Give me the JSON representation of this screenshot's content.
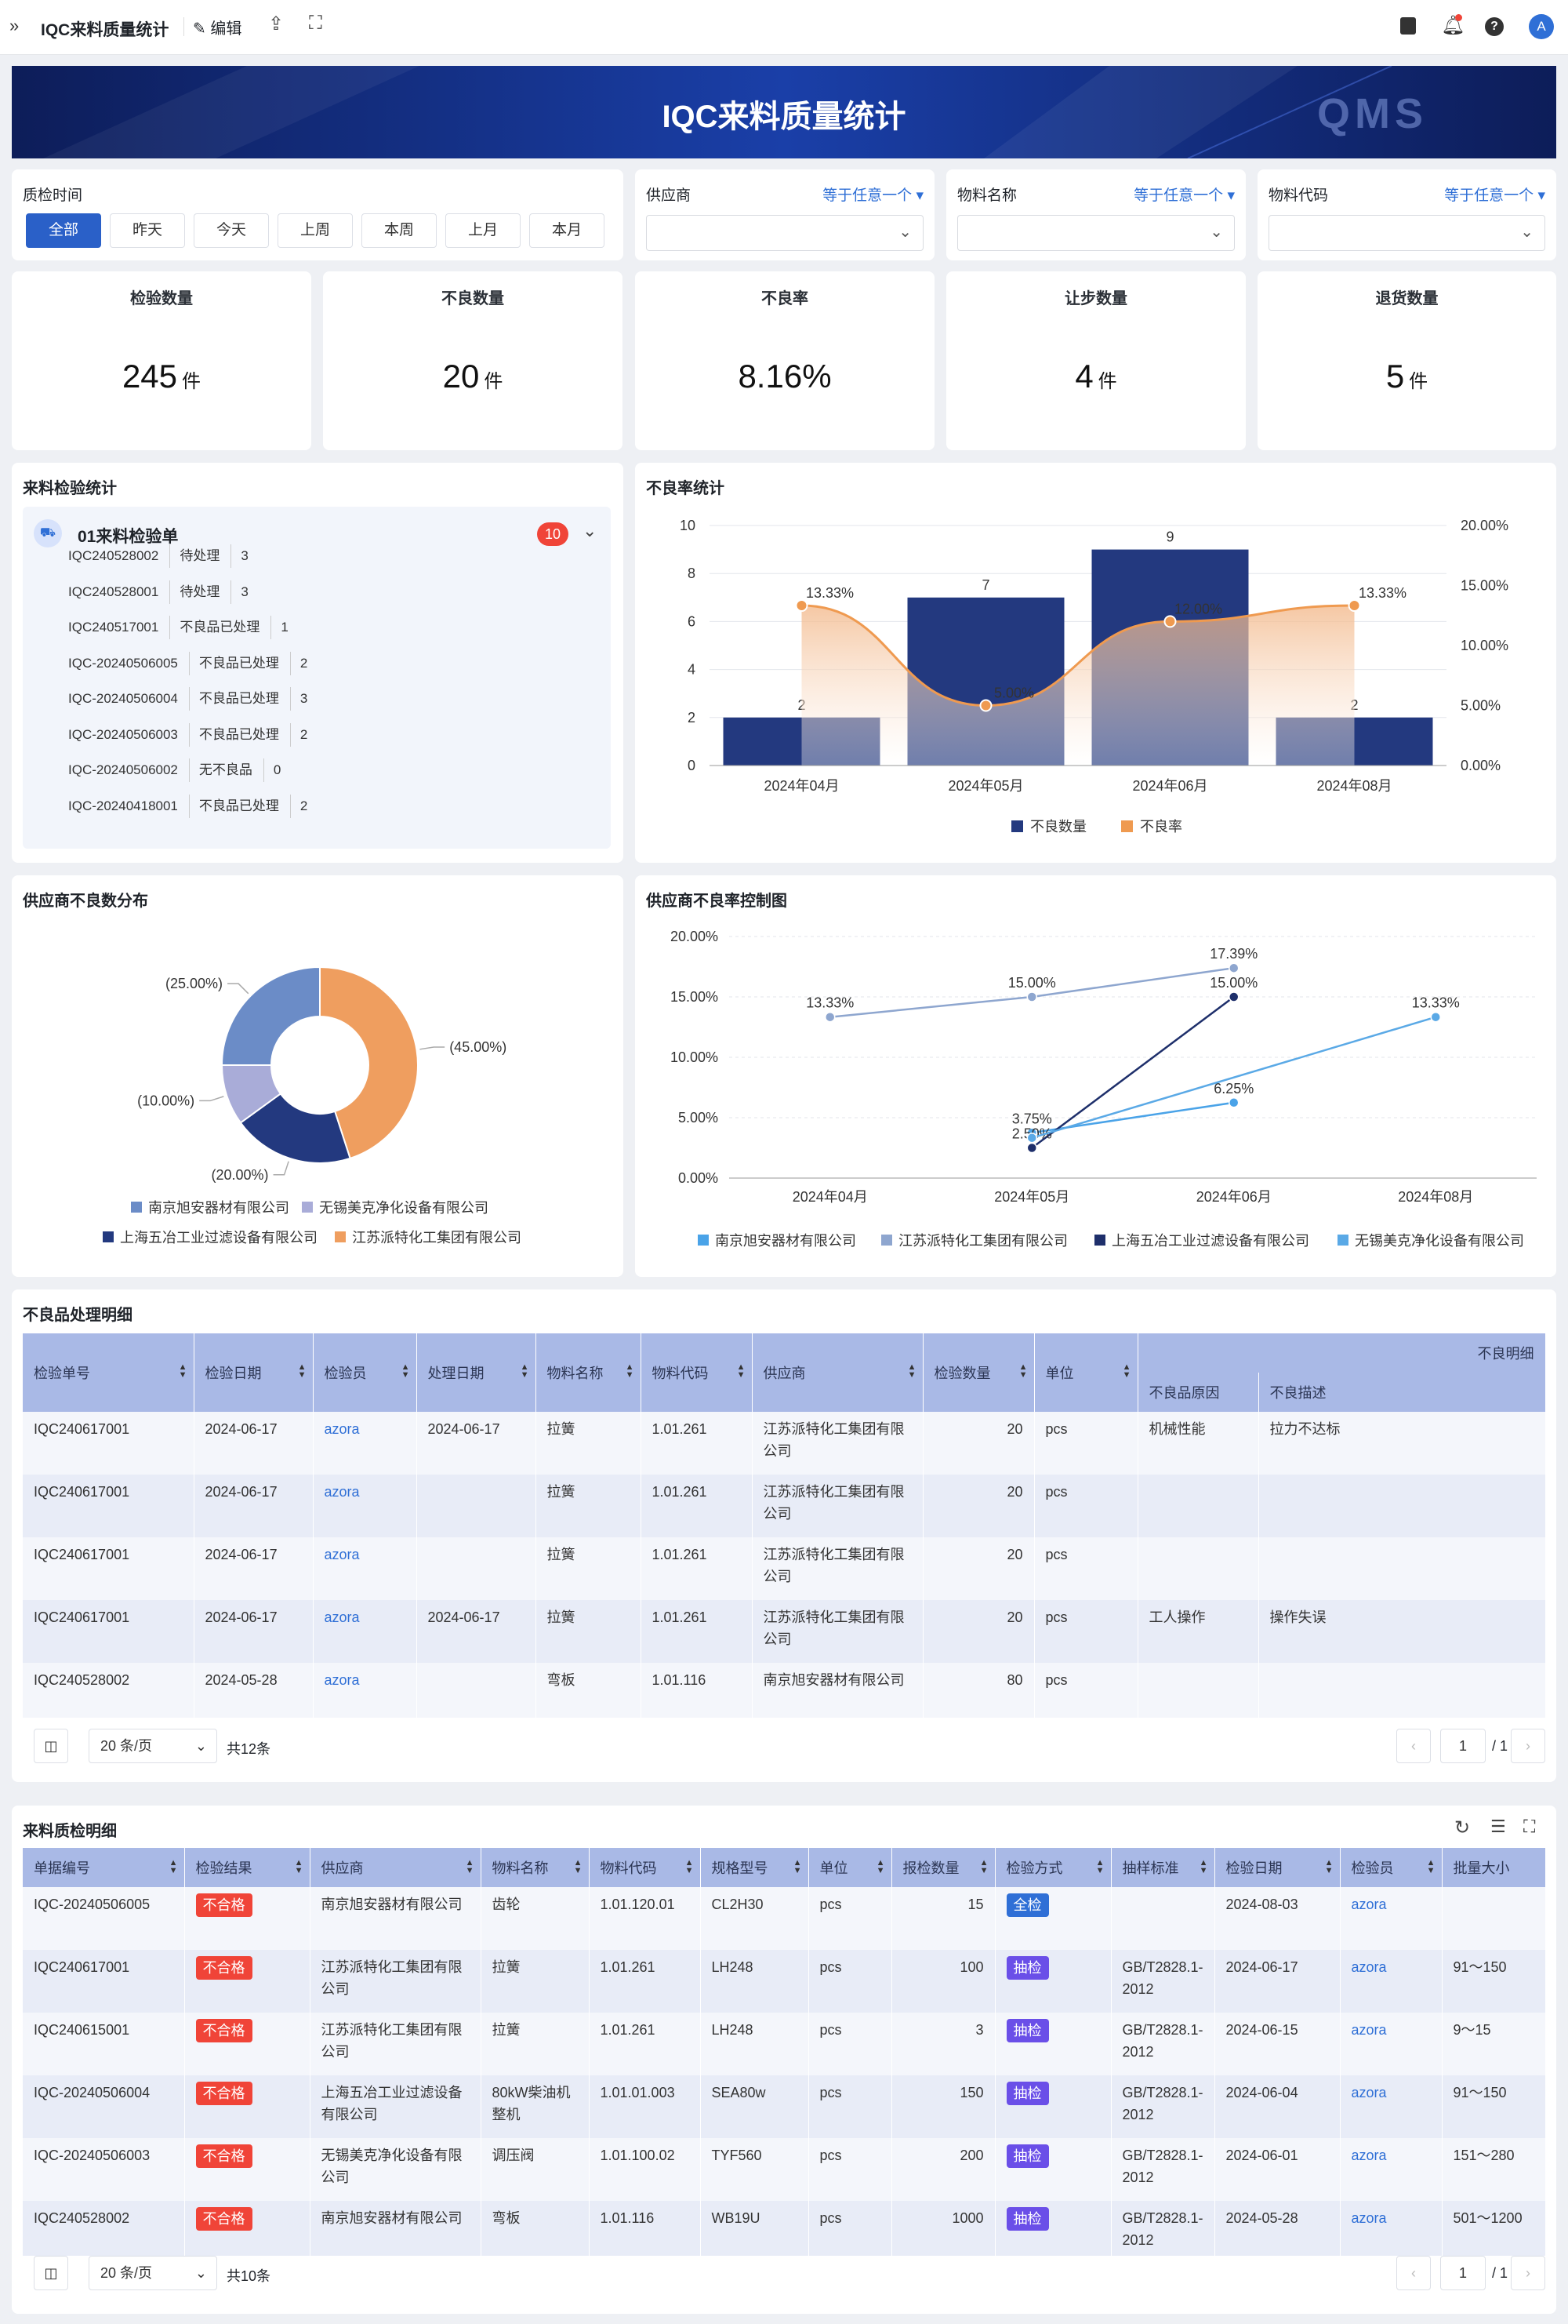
{
  "topbar": {
    "title": "IQC来料质量统计",
    "edit_label": "编辑",
    "avatar_letter": "A"
  },
  "banner": {
    "title": "IQC来料质量统计",
    "logo": "QMS"
  },
  "filters": {
    "time_label": "质检时间",
    "time_buttons": [
      "全部",
      "昨天",
      "今天",
      "上周",
      "本周",
      "上月",
      "本月"
    ],
    "selected": "全部",
    "dropdowns": [
      {
        "label": "供应商",
        "operator": "等于任意一个",
        "value": ""
      },
      {
        "label": "物料名称",
        "operator": "等于任意一个",
        "value": ""
      },
      {
        "label": "物料代码",
        "operator": "等于任意一个",
        "value": ""
      }
    ]
  },
  "kpis": [
    {
      "label": "检验数量",
      "value": "245",
      "unit": "件"
    },
    {
      "label": "不良数量",
      "value": "20",
      "unit": "件"
    },
    {
      "label": "不良率",
      "value": "8.16%",
      "unit": ""
    },
    {
      "label": "让步数量",
      "value": "4",
      "unit": "件"
    },
    {
      "label": "退货数量",
      "value": "5",
      "unit": "件"
    }
  ],
  "inspection_list": {
    "title": "来料检验统计",
    "group": "01来料检验单",
    "count": "10",
    "items": [
      {
        "code": "IQC240528002",
        "status": "待处理",
        "num": "3"
      },
      {
        "code": "IQC240528001",
        "status": "待处理",
        "num": "3"
      },
      {
        "code": "IQC240517001",
        "status": "不良品已处理",
        "num": "1"
      },
      {
        "code": "IQC-20240506005",
        "status": "不良品已处理",
        "num": "2"
      },
      {
        "code": "IQC-20240506004",
        "status": "不良品已处理",
        "num": "3"
      },
      {
        "code": "IQC-20240506003",
        "status": "不良品已处理",
        "num": "2"
      },
      {
        "code": "IQC-20240506002",
        "status": "无不良品",
        "num": "0"
      },
      {
        "code": "IQC-20240418001",
        "status": "不良品已处理",
        "num": "2"
      }
    ]
  },
  "chart_data": [
    {
      "type": "bar",
      "title": "不良率统计",
      "categories": [
        "2024年04月",
        "2024年05月",
        "2024年06月",
        "2024年08月"
      ],
      "series": [
        {
          "name": "不良数量",
          "type": "bar",
          "values": [
            2,
            7,
            9,
            2
          ],
          "color": "#23397f"
        },
        {
          "name": "不良率",
          "type": "line",
          "values": [
            13.33,
            5.0,
            12.0,
            13.33
          ],
          "labels": [
            "13.33%",
            "5.00%",
            "12.00%",
            "13.33%"
          ],
          "color": "#ef9a50"
        }
      ],
      "y_left": {
        "min": 0,
        "max": 10,
        "ticks": [
          "0",
          "2",
          "4",
          "6",
          "8",
          "10"
        ]
      },
      "y_right": {
        "min": 0,
        "max": 20,
        "ticks": [
          "0.00%",
          "5.00%",
          "10.00%",
          "15.00%",
          "20.00%"
        ]
      },
      "legend": "bottom"
    },
    {
      "type": "pie",
      "title": "供应商不良数分布",
      "slices": [
        {
          "name": "南京旭安器材有限公司",
          "value": 25,
          "label": "(25.00%)",
          "color": "#6b8cc7"
        },
        {
          "name": "无锡美克净化设备有限公司",
          "value": 10,
          "label": "(10.00%)",
          "color": "#a9acd8"
        },
        {
          "name": "上海五冶工业过滤设备有限公司",
          "value": 20,
          "label": "(20.00%)",
          "color": "#23397f"
        },
        {
          "name": "江苏派特化工集团有限公司",
          "value": 45,
          "label": "(45.00%)",
          "color": "#ef9e5f"
        }
      ],
      "legend": "bottom"
    },
    {
      "type": "line",
      "title": "供应商不良率控制图",
      "categories": [
        "2024年04月",
        "2024年05月",
        "2024年06月",
        "2024年08月"
      ],
      "series": [
        {
          "name": "南京旭安器材有限公司",
          "points": [
            [
              1,
              3.75
            ],
            [
              2,
              6.25
            ]
          ],
          "labels": [
            "3.75%",
            "6.25%"
          ],
          "color": "#4aa3e8"
        },
        {
          "name": "江苏派特化工集团有限公司",
          "points": [
            [
              0,
              13.33
            ],
            [
              1,
              15.0
            ],
            [
              2,
              17.39
            ]
          ],
          "labels": [
            "13.33%",
            "15.00%",
            "17.39%"
          ],
          "color": "#8ea6cf"
        },
        {
          "name": "上海五冶工业过滤设备有限公司",
          "points": [
            [
              1,
              2.5
            ],
            [
              2,
              15.0
            ]
          ],
          "labels": [
            "2.50%",
            "15.00%"
          ],
          "color": "#1e2f6b"
        },
        {
          "name": "无锡美克净化设备有限公司",
          "points": [
            [
              1,
              3.33
            ],
            [
              3,
              13.33
            ]
          ],
          "labels": [
            "",
            "13.33%"
          ],
          "color": "#5aa9e6"
        }
      ],
      "y": {
        "min": 0,
        "max": 20,
        "ticks": [
          "0.00%",
          "5.00%",
          "10.00%",
          "15.00%",
          "20.00%"
        ]
      },
      "legend": "bottom"
    }
  ],
  "defect_table": {
    "title": "不良品处理明细",
    "group_header": "不良明细",
    "columns": [
      "检验单号",
      "检验日期",
      "检验员",
      "处理日期",
      "物料名称",
      "物料代码",
      "供应商",
      "检验数量",
      "单位"
    ],
    "sub_columns": [
      "不良品原因",
      "不良描述"
    ],
    "rows": [
      [
        "IQC240617001",
        "2024-06-17",
        "azora",
        "2024-06-17",
        "拉簧",
        "1.01.261",
        "江苏派特化工集团有限公司",
        "20",
        "pcs",
        "机械性能",
        "拉力不达标"
      ],
      [
        "IQC240617001",
        "2024-06-17",
        "azora",
        "",
        "拉簧",
        "1.01.261",
        "江苏派特化工集团有限公司",
        "20",
        "pcs",
        "",
        ""
      ],
      [
        "IQC240617001",
        "2024-06-17",
        "azora",
        "",
        "拉簧",
        "1.01.261",
        "江苏派特化工集团有限公司",
        "20",
        "pcs",
        "",
        ""
      ],
      [
        "IQC240617001",
        "2024-06-17",
        "azora",
        "2024-06-17",
        "拉簧",
        "1.01.261",
        "江苏派特化工集团有限公司",
        "20",
        "pcs",
        "工人操作",
        "操作失误"
      ],
      [
        "IQC240528002",
        "2024-05-28",
        "azora",
        "",
        "弯板",
        "1.01.116",
        "南京旭安器材有限公司",
        "80",
        "pcs",
        "",
        ""
      ]
    ],
    "page_size": "20 条/页",
    "total": "共12条",
    "page": "1",
    "pages": "/ 1"
  },
  "incoming_table": {
    "title": "来料质检明细",
    "columns": [
      "单据编号",
      "检验结果",
      "供应商",
      "物料名称",
      "物料代码",
      "规格型号",
      "单位",
      "报检数量",
      "检验方式",
      "抽样标准",
      "检验日期",
      "检验员",
      "批量大小"
    ],
    "rows": [
      [
        "IQC-20240506005",
        "不合格",
        "南京旭安器材有限公司",
        "齿轮",
        "1.01.120.01",
        "CL2H30",
        "pcs",
        "15",
        "全检",
        "",
        "2024-08-03",
        "azora",
        ""
      ],
      [
        "IQC240617001",
        "不合格",
        "江苏派特化工集团有限公司",
        "拉簧",
        "1.01.261",
        "LH248",
        "pcs",
        "100",
        "抽检",
        "GB/T2828.1-2012",
        "2024-06-17",
        "azora",
        "91～150"
      ],
      [
        "IQC240615001",
        "不合格",
        "江苏派特化工集团有限公司",
        "拉簧",
        "1.01.261",
        "LH248",
        "pcs",
        "3",
        "抽检",
        "GB/T2828.1-2012",
        "2024-06-15",
        "azora",
        "9～15"
      ],
      [
        "IQC-20240506004",
        "不合格",
        "上海五冶工业过滤设备有限公司",
        "80kW柴油机整机",
        "1.01.01.003",
        "SEA80w",
        "pcs",
        "150",
        "抽检",
        "GB/T2828.1-2012",
        "2024-06-04",
        "azora",
        "91～150"
      ],
      [
        "IQC-20240506003",
        "不合格",
        "无锡美克净化设备有限公司",
        "调压阀",
        "1.01.100.02",
        "TYF560",
        "pcs",
        "200",
        "抽检",
        "GB/T2828.1-2012",
        "2024-06-01",
        "azora",
        "151～280"
      ],
      [
        "IQC240528002",
        "不合格",
        "南京旭安器材有限公司",
        "弯板",
        "1.01.116",
        "WB19U",
        "pcs",
        "1000",
        "抽检",
        "GB/T2828.1-2012",
        "2024-05-28",
        "azora",
        "501～1200"
      ]
    ],
    "page_size": "20 条/页",
    "total": "共10条",
    "page": "1",
    "pages": "/ 1"
  }
}
